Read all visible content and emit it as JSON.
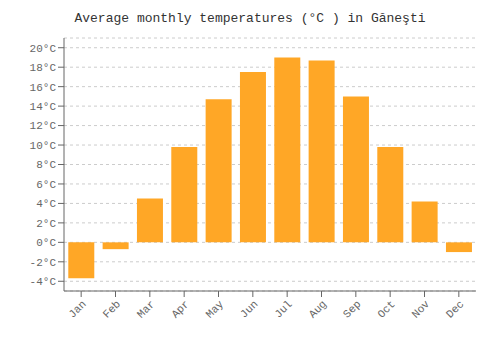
{
  "chart_data": {
    "type": "bar",
    "title": "Average monthly temperatures (°C ) in Găneşti",
    "categories": [
      "Jan",
      "Feb",
      "Mar",
      "Apr",
      "May",
      "Jun",
      "Jul",
      "Aug",
      "Sep",
      "Oct",
      "Nov",
      "Dec"
    ],
    "values": [
      -3.7,
      -0.7,
      4.5,
      9.8,
      14.7,
      17.5,
      19.0,
      18.7,
      15.0,
      9.8,
      4.2,
      -1.0
    ],
    "color": "#FFA726",
    "ylim": [
      -5,
      21
    ],
    "yticks": [
      {
        "value": -4,
        "label": "-4°C"
      },
      {
        "value": -2,
        "label": "-2°C"
      },
      {
        "value": 0,
        "label": "0°C"
      },
      {
        "value": 2,
        "label": "2°C"
      },
      {
        "value": 4,
        "label": "4°C"
      },
      {
        "value": 6,
        "label": "6°C"
      },
      {
        "value": 8,
        "label": "8°C"
      },
      {
        "value": 10,
        "label": "10°C"
      },
      {
        "value": 12,
        "label": "12°C"
      },
      {
        "value": 14,
        "label": "14°C"
      },
      {
        "value": 16,
        "label": "16°C"
      },
      {
        "value": 18,
        "label": "18°C"
      },
      {
        "value": 20,
        "label": "20°C"
      }
    ],
    "grid": true
  }
}
